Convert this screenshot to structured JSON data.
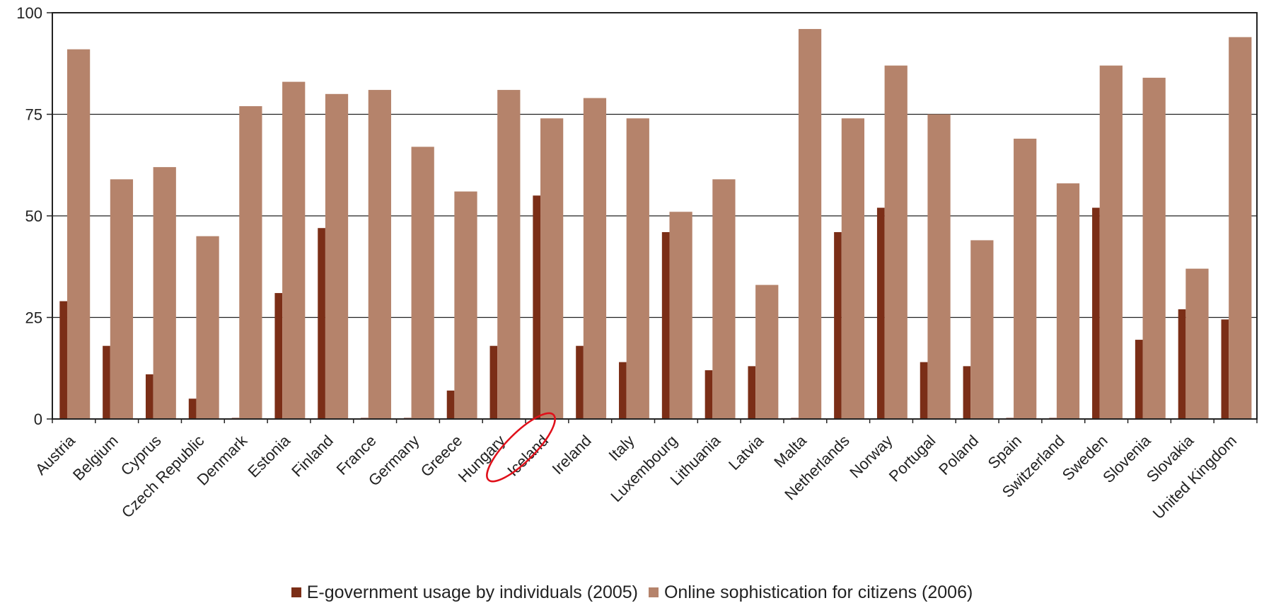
{
  "chart_data": {
    "type": "bar",
    "categories": [
      "Austria",
      "Belgium",
      "Cyprus",
      "Czech Republic",
      "Denmark",
      "Estonia",
      "Finland",
      "France",
      "Germany",
      "Greece",
      "Hungary",
      "Iceland",
      "Ireland",
      "Italy",
      "Luxembourg",
      "Lithuania",
      "Latvia",
      "Malta",
      "Netherlands",
      "Norway",
      "Portugal",
      "Poland",
      "Spain",
      "Switzerland",
      "Sweden",
      "Slovenia",
      "Slovakia",
      "United Kingdom"
    ],
    "series": [
      {
        "name": "E-government usage by individuals (2005)",
        "color": "#7b2e17",
        "values": [
          29,
          18,
          11,
          5,
          0,
          31,
          47,
          0,
          0,
          7,
          18,
          55,
          18,
          14,
          46,
          12,
          13,
          0,
          46,
          52,
          14,
          13,
          0,
          0,
          52,
          19.5,
          27,
          24.5
        ]
      },
      {
        "name": "Online sophistication for citizens (2006)",
        "color": "#b5836b",
        "values": [
          91,
          59,
          62,
          45,
          77,
          83,
          80,
          81,
          67,
          56,
          81,
          74,
          79,
          74,
          51,
          59,
          33,
          96,
          74,
          87,
          75,
          44,
          69,
          58,
          87,
          84,
          37,
          94
        ]
      }
    ],
    "yticks": [
      0,
      25,
      50,
      75,
      100
    ],
    "ylim": [
      0,
      100
    ],
    "title": "",
    "xlabel": "",
    "ylabel": "",
    "highlighted_category": "Iceland",
    "highlight_color": "#e0101a",
    "grid": true,
    "legend_position": "bottom"
  }
}
